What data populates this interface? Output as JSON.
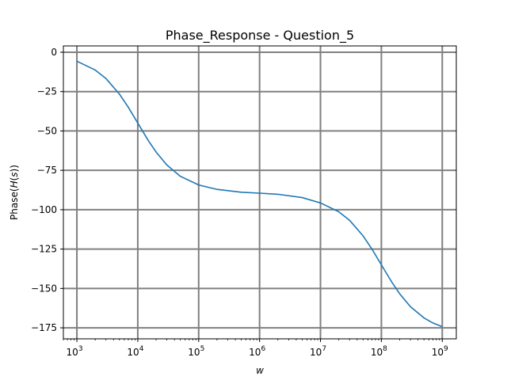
{
  "chart_data": {
    "type": "line",
    "title": "Phase_Response - Question_5",
    "xlabel": "w",
    "ylabel": "Phase(H(s))",
    "xscale": "log",
    "xlim": [
      600,
      1700000000
    ],
    "ylim": [
      -182,
      4
    ],
    "grid": true,
    "x_ticks": [
      {
        "value": 1000,
        "base": "10",
        "exp": "3"
      },
      {
        "value": 10000,
        "base": "10",
        "exp": "4"
      },
      {
        "value": 100000,
        "base": "10",
        "exp": "5"
      },
      {
        "value": 1000000,
        "base": "10",
        "exp": "6"
      },
      {
        "value": 10000000,
        "base": "10",
        "exp": "7"
      },
      {
        "value": 100000000,
        "base": "10",
        "exp": "8"
      },
      {
        "value": 1000000000,
        "base": "10",
        "exp": "9"
      }
    ],
    "y_ticks": [
      {
        "value": 0,
        "label": "0"
      },
      {
        "value": -25,
        "label": "−25"
      },
      {
        "value": -50,
        "label": "−50"
      },
      {
        "value": -75,
        "label": "−75"
      },
      {
        "value": -100,
        "label": "−100"
      },
      {
        "value": -125,
        "label": "−125"
      },
      {
        "value": -150,
        "label": "−150"
      },
      {
        "value": -175,
        "label": "−175"
      }
    ],
    "series": [
      {
        "color": "#1f77b4",
        "x": [
          1000,
          2000,
          3000,
          5000,
          7000,
          10000,
          15000,
          20000,
          30000,
          50000,
          100000,
          200000,
          500000,
          1000000,
          2000000,
          5000000,
          10000000,
          20000000,
          30000000,
          50000000,
          70000000,
          100000000,
          150000000,
          200000000,
          300000000,
          500000000,
          700000000,
          1000000000
        ],
        "y": [
          -5.7,
          -11.3,
          -16.7,
          -26.6,
          -35.0,
          -45.0,
          -56.3,
          -63.4,
          -71.6,
          -78.8,
          -84.3,
          -87.1,
          -88.9,
          -89.5,
          -90.2,
          -92.3,
          -95.7,
          -101.3,
          -106.7,
          -116.6,
          -125.0,
          -135.0,
          -146.3,
          -153.4,
          -161.6,
          -168.7,
          -171.9,
          -174.3
        ]
      }
    ]
  }
}
